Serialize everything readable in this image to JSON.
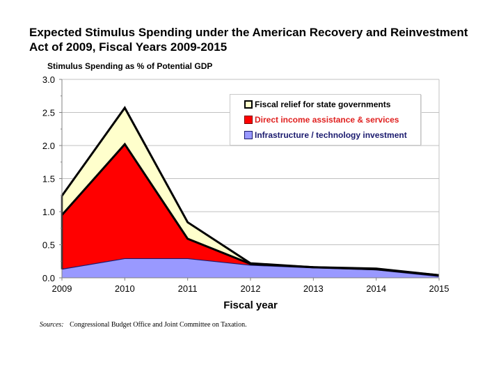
{
  "title_line1": "Expected Stimulus Spending under the American Recovery and Reinvestment",
  "title_line2": "Act of 2009, Fiscal Years 2009-2015",
  "sources_label": "Sources:",
  "sources_text": "Congressional Budget Office and Joint Committee on Taxation.",
  "colors": {
    "fiscal_relief": "#FFFFCC",
    "direct_income": "#FF0000",
    "infrastructure": "#9999FF",
    "fiscal_relief_text": "#000000",
    "direct_income_text": "#E0201F",
    "infrastructure_text": "#1A1A6E",
    "gridline": "#C0C0C0",
    "outline": "#000000"
  },
  "chart_data": {
    "type": "area",
    "stacked": true,
    "title": "Expected Stimulus Spending under the American Recovery and Reinvestment Act of 2009, Fiscal Years 2009-2015",
    "subtitle": "Stimulus Spending as % of Potential GDP",
    "xlabel": "Fiscal year",
    "ylabel": "Stimulus Spending as % of Potential GDP",
    "categories": [
      "2009",
      "2010",
      "2011",
      "2012",
      "2013",
      "2014",
      "2015"
    ],
    "ylim": [
      0,
      3.0
    ],
    "yticks": [
      "0.0",
      "0.5",
      "1.0",
      "1.5",
      "2.0",
      "2.5",
      "3.0"
    ],
    "ytick_values": [
      0,
      0.5,
      1.0,
      1.5,
      2.0,
      2.5,
      3.0
    ],
    "grid": true,
    "legend_position": "top-right",
    "series": [
      {
        "name": "Infrastructure / technology investment",
        "key": "infrastructure",
        "values": [
          0.13,
          0.29,
          0.29,
          0.19,
          0.15,
          0.12,
          0.02
        ]
      },
      {
        "name": "Direct income assistance & services",
        "key": "direct_income",
        "values": [
          0.82,
          1.73,
          0.3,
          0.02,
          0.01,
          0.01,
          0.02
        ]
      },
      {
        "name": "Fiscal relief for state governments",
        "key": "fiscal_relief",
        "values": [
          0.29,
          0.55,
          0.25,
          0.01,
          0.0,
          0.01,
          0.0
        ]
      }
    ],
    "legend": [
      {
        "label": "Fiscal relief for state governments",
        "key": "fiscal_relief"
      },
      {
        "label": "Direct income assistance & services",
        "key": "direct_income"
      },
      {
        "label": "Infrastructure / technology investment",
        "key": "infrastructure"
      }
    ]
  }
}
